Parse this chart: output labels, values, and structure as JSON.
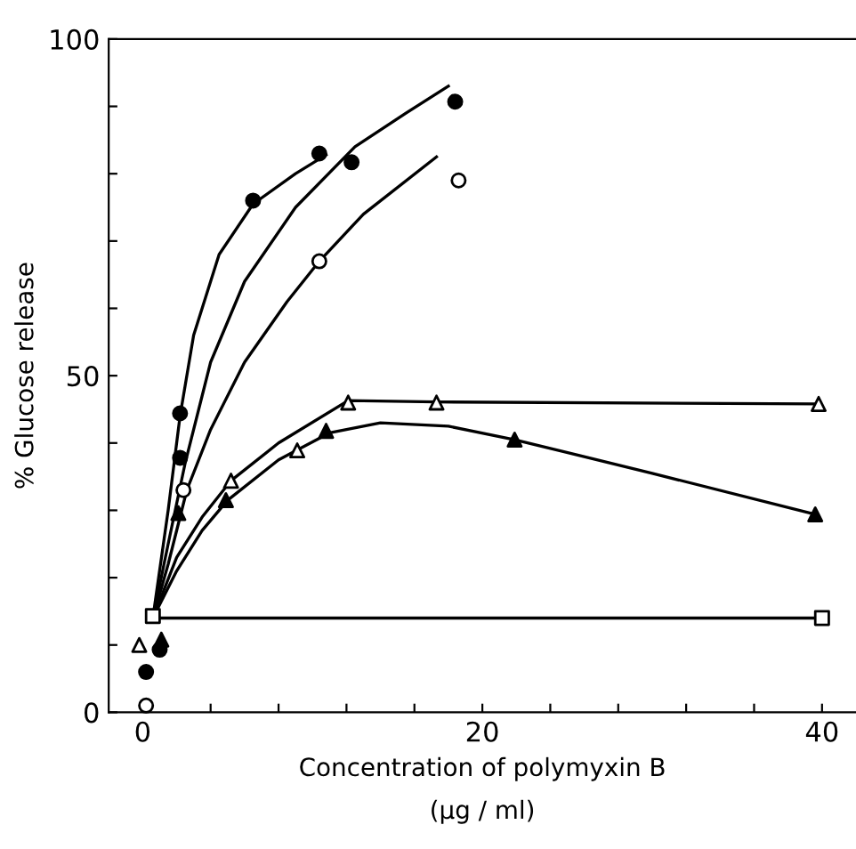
{
  "chart_data": {
    "type": "scatter",
    "xlabel": "Concentration of polymyxin B\n(μg / ml)",
    "ylabel": "% Glucose release",
    "xlim": [
      -2,
      42
    ],
    "ylim": [
      0,
      100
    ],
    "xticks": [
      0,
      {
        "value": 4,
        "label": null
      },
      {
        "value": 8,
        "label": null
      },
      {
        "value": 12,
        "label": null
      },
      {
        "value": 16,
        "label": null
      },
      20,
      {
        "value": 24,
        "label": null
      },
      {
        "value": 28,
        "label": null
      },
      {
        "value": 32,
        "label": null
      },
      {
        "value": 36,
        "label": null
      },
      40
    ],
    "yticks": [
      0,
      {
        "value": 10,
        "label": null
      },
      {
        "value": 20,
        "label": null
      },
      {
        "value": 30,
        "label": null
      },
      {
        "value": 40,
        "label": null
      },
      50,
      {
        "value": 60,
        "label": null
      },
      {
        "value": 70,
        "label": null
      },
      {
        "value": 80,
        "label": null
      },
      {
        "value": 90,
        "label": null
      },
      100
    ],
    "grid": false,
    "legend": false,
    "series": [
      {
        "type": "line",
        "color": "#000000",
        "marker": "none",
        "x": [
          0.6,
          1.5,
          2.2,
          3,
          4.5,
          6.5,
          9,
          10.8
        ],
        "values": [
          14,
          30,
          44,
          56,
          68,
          75.5,
          80,
          82.8
        ]
      },
      {
        "type": "line",
        "color": "#000000",
        "marker": "none",
        "x": [
          0.6,
          1.5,
          2.5,
          4,
          6,
          9,
          12.5,
          15.5,
          18
        ],
        "values": [
          14,
          25,
          37,
          52,
          64,
          75,
          84,
          89,
          93
        ]
      },
      {
        "type": "line",
        "color": "#000000",
        "marker": "none",
        "x": [
          0.6,
          1.5,
          2.6,
          4,
          6,
          8.5,
          10.4,
          13,
          17.3
        ],
        "values": [
          14,
          22,
          33,
          42,
          52,
          61,
          67,
          74,
          82.5
        ]
      },
      {
        "type": "line",
        "color": "#000000",
        "marker": "none",
        "x": [
          0.6,
          2,
          3.5,
          5.2,
          8,
          12.1,
          17.3,
          39.8
        ],
        "values": [
          14,
          23,
          29,
          34.4,
          40,
          46.3,
          46.1,
          45.8
        ]
      },
      {
        "type": "line",
        "color": "#000000",
        "marker": "none",
        "x": [
          0.6,
          2,
          3.5,
          5,
          8,
          11,
          14,
          18,
          21.9,
          30,
          39.6
        ],
        "values": [
          14,
          21,
          27,
          31.5,
          37.5,
          41.5,
          43,
          42.5,
          40.5,
          35.5,
          29.4
        ]
      },
      {
        "type": "line",
        "color": "#000000",
        "marker": "none",
        "x": [
          0.6,
          40
        ],
        "values": [
          14,
          14
        ]
      },
      {
        "color": "#000000",
        "marker": "circle",
        "x": [
          0.2,
          1.0,
          2.2,
          2.2,
          6.5,
          10.4,
          12.3,
          18.4
        ],
        "values": [
          6,
          9.3,
          44.4,
          37.8,
          76,
          83,
          81.7,
          90.7
        ]
      },
      {
        "color": "#ffffff",
        "marker": "circle",
        "x": [
          0.2,
          2.4,
          10.4,
          18.6
        ],
        "values": [
          1,
          33,
          67,
          79
        ]
      },
      {
        "color": "#ffffff",
        "marker": "triangle",
        "x": [
          -0.2,
          5.2,
          9.1,
          12.1,
          17.3,
          39.8
        ],
        "values": [
          10,
          34.4,
          38.9,
          46,
          46,
          45.8
        ]
      },
      {
        "color": "#000000",
        "marker": "triangle",
        "x": [
          1.1,
          2.1,
          4.9,
          10.8,
          21.9,
          39.6
        ],
        "values": [
          10.8,
          29.6,
          31.5,
          41.8,
          40.5,
          29.4
        ]
      },
      {
        "color": "#ffffff",
        "marker": "square",
        "x": [
          0.6,
          40
        ],
        "values": [
          14.3,
          14
        ]
      }
    ]
  }
}
